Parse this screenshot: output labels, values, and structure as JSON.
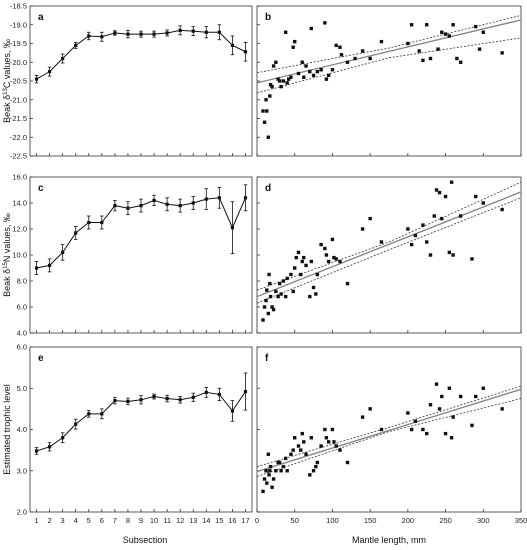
{
  "figure": {
    "left_xlabel": "Subsection",
    "right_xlabel": "Mantle length, mm"
  },
  "chart_data": [
    {
      "panel": "a",
      "type": "line",
      "ylabel": "Beak δ13C values, ‰",
      "ylabel_parts": {
        "pre": "Beak δ",
        "sup": "13",
        "post": "C values, ‰"
      },
      "xlabel": "Subsection",
      "xlim": [
        0.5,
        17.5
      ],
      "ylim": [
        -22.5,
        -18.5
      ],
      "xticks": [
        1,
        2,
        3,
        4,
        5,
        6,
        7,
        8,
        9,
        10,
        11,
        12,
        13,
        14,
        15,
        16,
        17
      ],
      "yticks": [
        -22.5,
        -22.0,
        -21.5,
        -21.0,
        -20.5,
        -20.0,
        -19.5,
        -19.0,
        -18.5
      ],
      "ytick_labels": [
        "-22.5",
        "-22.0",
        "-21.5",
        "-21.0",
        "-20.5",
        "-20.0",
        "-19.5",
        "-19.0",
        "-18.5"
      ],
      "x": [
        1,
        2,
        3,
        4,
        5,
        6,
        7,
        8,
        9,
        10,
        11,
        12,
        13,
        14,
        15,
        16,
        17
      ],
      "y": [
        -20.45,
        -20.25,
        -19.9,
        -19.55,
        -19.3,
        -19.32,
        -19.22,
        -19.25,
        -19.25,
        -19.25,
        -19.22,
        -19.15,
        -19.17,
        -19.2,
        -19.2,
        -19.55,
        -19.72
      ],
      "err": [
        0.1,
        0.12,
        0.12,
        0.08,
        0.1,
        0.12,
        0.06,
        0.1,
        0.08,
        0.08,
        0.08,
        0.12,
        0.12,
        0.15,
        0.2,
        0.25,
        0.25
      ]
    },
    {
      "panel": "b",
      "type": "scatter",
      "xlim": [
        0,
        350
      ],
      "ylim": [
        -22.5,
        -18.5
      ],
      "xticks": [
        0,
        50,
        100,
        150,
        200,
        250,
        300,
        350
      ],
      "yticks": [
        -22.5,
        -22.0,
        -21.5,
        -21.0,
        -20.5,
        -20.0,
        -19.5,
        -19.0,
        -18.5
      ],
      "fit": {
        "intercept": -20.55,
        "slope": 0.0048
      },
      "ci_upper": [
        [
          0,
          -20.28
        ],
        [
          175,
          -19.62
        ],
        [
          350,
          -18.75
        ]
      ],
      "ci_lower": [
        [
          0,
          -20.82
        ],
        [
          175,
          -19.88
        ],
        [
          350,
          -19.35
        ]
      ],
      "points": [
        [
          8,
          -21.3
        ],
        [
          10,
          -21.6
        ],
        [
          12,
          -21.0
        ],
        [
          13,
          -21.3
        ],
        [
          15,
          -22.0
        ],
        [
          17,
          -20.9
        ],
        [
          18,
          -20.6
        ],
        [
          20,
          -20.65
        ],
        [
          22,
          -20.1
        ],
        [
          25,
          -20.0
        ],
        [
          28,
          -20.45
        ],
        [
          30,
          -20.5
        ],
        [
          32,
          -20.65
        ],
        [
          35,
          -20.5
        ],
        [
          38,
          -19.2
        ],
        [
          40,
          -20.55
        ],
        [
          42,
          -20.45
        ],
        [
          45,
          -20.4
        ],
        [
          48,
          -19.6
        ],
        [
          50,
          -19.45
        ],
        [
          55,
          -20.3
        ],
        [
          60,
          -20.0
        ],
        [
          62,
          -20.4
        ],
        [
          65,
          -20.1
        ],
        [
          70,
          -20.25
        ],
        [
          72,
          -19.1
        ],
        [
          75,
          -20.35
        ],
        [
          80,
          -20.25
        ],
        [
          85,
          -20.2
        ],
        [
          90,
          -18.95
        ],
        [
          92,
          -20.45
        ],
        [
          95,
          -20.35
        ],
        [
          100,
          -20.2
        ],
        [
          105,
          -19.55
        ],
        [
          110,
          -19.6
        ],
        [
          112,
          -19.8
        ],
        [
          120,
          -20.0
        ],
        [
          130,
          -19.9
        ],
        [
          140,
          -19.7
        ],
        [
          150,
          -19.9
        ],
        [
          165,
          -19.45
        ],
        [
          200,
          -19.5
        ],
        [
          205,
          -19.0
        ],
        [
          215,
          -19.7
        ],
        [
          220,
          -19.95
        ],
        [
          225,
          -19.0
        ],
        [
          230,
          -19.9
        ],
        [
          240,
          -19.65
        ],
        [
          245,
          -19.2
        ],
        [
          250,
          -19.25
        ],
        [
          255,
          -19.3
        ],
        [
          260,
          -19.0
        ],
        [
          265,
          -19.9
        ],
        [
          270,
          -20.0
        ],
        [
          290,
          -19.05
        ],
        [
          295,
          -19.65
        ],
        [
          300,
          -19.2
        ],
        [
          325,
          -19.75
        ]
      ]
    },
    {
      "panel": "c",
      "type": "line",
      "ylabel": "Beak δ15N values, ‰",
      "ylabel_parts": {
        "pre": "Beak δ",
        "sup": "15",
        "post": "N values, ‰"
      },
      "xlim": [
        0.5,
        17.5
      ],
      "ylim": [
        4.0,
        16.0
      ],
      "xticks": [
        1,
        2,
        3,
        4,
        5,
        6,
        7,
        8,
        9,
        10,
        11,
        12,
        13,
        14,
        15,
        16,
        17
      ],
      "yticks": [
        4,
        6,
        8,
        10,
        12,
        14,
        16
      ],
      "ytick_labels": [
        "4.0",
        "6.0",
        "8.0",
        "10.0",
        "12.0",
        "14.0",
        "16.0"
      ],
      "x": [
        1,
        2,
        3,
        4,
        5,
        6,
        7,
        8,
        9,
        10,
        11,
        12,
        13,
        14,
        15,
        16,
        17
      ],
      "y": [
        9.0,
        9.2,
        10.2,
        11.7,
        12.5,
        12.5,
        13.8,
        13.6,
        13.8,
        14.2,
        13.9,
        13.8,
        14.0,
        14.3,
        14.4,
        12.1,
        14.4
      ],
      "err": [
        0.5,
        0.5,
        0.6,
        0.5,
        0.5,
        0.5,
        0.4,
        0.5,
        0.5,
        0.4,
        0.5,
        0.5,
        0.5,
        0.8,
        0.8,
        2.0,
        1.0
      ]
    },
    {
      "panel": "d",
      "type": "scatter",
      "xlim": [
        0,
        350
      ],
      "ylim": [
        4.0,
        16.0
      ],
      "xticks": [
        0,
        50,
        100,
        150,
        200,
        250,
        300,
        350
      ],
      "yticks": [
        4,
        6,
        8,
        10,
        12,
        14,
        16
      ],
      "fit": {
        "intercept": 6.8,
        "slope": 0.023
      },
      "ci_upper": [
        [
          0,
          7.3
        ],
        [
          175,
          11.0
        ],
        [
          350,
          15.6
        ]
      ],
      "ci_lower": [
        [
          0,
          6.3
        ],
        [
          175,
          10.4
        ],
        [
          350,
          14.4
        ]
      ],
      "points": [
        [
          8,
          5.0
        ],
        [
          10,
          6.0
        ],
        [
          12,
          6.5
        ],
        [
          13,
          7.3
        ],
        [
          15,
          5.5
        ],
        [
          16,
          8.5
        ],
        [
          17,
          7.8
        ],
        [
          18,
          6.8
        ],
        [
          20,
          6.0
        ],
        [
          22,
          5.8
        ],
        [
          25,
          7.2
        ],
        [
          28,
          6.8
        ],
        [
          30,
          7.8
        ],
        [
          32,
          7.0
        ],
        [
          35,
          8.0
        ],
        [
          38,
          6.8
        ],
        [
          40,
          8.2
        ],
        [
          45,
          8.5
        ],
        [
          48,
          7.2
        ],
        [
          50,
          9.0
        ],
        [
          52,
          9.8
        ],
        [
          55,
          10.2
        ],
        [
          58,
          8.5
        ],
        [
          60,
          9.5
        ],
        [
          62,
          9.8
        ],
        [
          65,
          9.2
        ],
        [
          70,
          6.8
        ],
        [
          72,
          9.5
        ],
        [
          75,
          7.5
        ],
        [
          78,
          7.0
        ],
        [
          80,
          8.5
        ],
        [
          85,
          10.8
        ],
        [
          90,
          10.5
        ],
        [
          92,
          10.0
        ],
        [
          95,
          9.5
        ],
        [
          100,
          11.2
        ],
        [
          102,
          9.8
        ],
        [
          105,
          9.7
        ],
        [
          110,
          9.5
        ],
        [
          120,
          7.8
        ],
        [
          140,
          12.0
        ],
        [
          150,
          12.8
        ],
        [
          165,
          11.0
        ],
        [
          200,
          12.0
        ],
        [
          205,
          10.8
        ],
        [
          210,
          11.5
        ],
        [
          220,
          12.3
        ],
        [
          225,
          11.0
        ],
        [
          230,
          10.0
        ],
        [
          235,
          13.0
        ],
        [
          238,
          15.0
        ],
        [
          242,
          14.8
        ],
        [
          245,
          12.8
        ],
        [
          250,
          14.5
        ],
        [
          255,
          10.2
        ],
        [
          258,
          15.6
        ],
        [
          260,
          10.0
        ],
        [
          270,
          13.0
        ],
        [
          285,
          9.7
        ],
        [
          290,
          14.5
        ],
        [
          300,
          14.0
        ],
        [
          325,
          13.5
        ]
      ]
    },
    {
      "panel": "e",
      "type": "line",
      "ylabel": "Estimated trophic level",
      "xlabel": "Subsection",
      "xlim": [
        0.5,
        17.5
      ],
      "ylim": [
        2.0,
        6.0
      ],
      "xticks": [
        1,
        2,
        3,
        4,
        5,
        6,
        7,
        8,
        9,
        10,
        11,
        12,
        13,
        14,
        15,
        16,
        17
      ],
      "yticks": [
        2,
        3,
        4,
        5,
        6
      ],
      "ytick_labels": [
        "2.0",
        "3.0",
        "4.0",
        "5.0",
        "6.0"
      ],
      "x": [
        1,
        2,
        3,
        4,
        5,
        6,
        7,
        8,
        9,
        10,
        11,
        12,
        13,
        14,
        15,
        16,
        17
      ],
      "y": [
        3.48,
        3.58,
        3.8,
        4.13,
        4.38,
        4.38,
        4.7,
        4.68,
        4.72,
        4.8,
        4.75,
        4.72,
        4.78,
        4.9,
        4.85,
        4.45,
        4.92
      ],
      "err": [
        0.08,
        0.1,
        0.12,
        0.12,
        0.08,
        0.12,
        0.08,
        0.08,
        0.1,
        0.06,
        0.08,
        0.08,
        0.1,
        0.12,
        0.15,
        0.25,
        0.45
      ]
    },
    {
      "panel": "f",
      "type": "scatter",
      "xlabel": "Mantle length, mm",
      "xlim": [
        0,
        350
      ],
      "ylim": [
        2.0,
        6.0
      ],
      "xticks": [
        0,
        50,
        100,
        150,
        200,
        250,
        300,
        350
      ],
      "yticks": [
        2,
        3,
        4,
        5,
        6
      ],
      "fit": {
        "intercept": 2.98,
        "slope": 0.0057
      },
      "ci_upper": [
        [
          0,
          3.1
        ],
        [
          175,
          4.05
        ],
        [
          350,
          5.05
        ]
      ],
      "ci_lower": [
        [
          0,
          2.86
        ],
        [
          175,
          3.95
        ],
        [
          350,
          4.75
        ]
      ],
      "points": [
        [
          8,
          2.5
        ],
        [
          10,
          2.8
        ],
        [
          12,
          3.0
        ],
        [
          13,
          2.7
        ],
        [
          15,
          3.4
        ],
        [
          16,
          2.9
        ],
        [
          17,
          3.0
        ],
        [
          18,
          3.1
        ],
        [
          20,
          2.6
        ],
        [
          22,
          2.8
        ],
        [
          25,
          3.0
        ],
        [
          28,
          3.2
        ],
        [
          30,
          3.2
        ],
        [
          32,
          3.0
        ],
        [
          35,
          3.1
        ],
        [
          38,
          3.3
        ],
        [
          40,
          3.0
        ],
        [
          45,
          3.4
        ],
        [
          48,
          3.5
        ],
        [
          50,
          3.8
        ],
        [
          55,
          3.6
        ],
        [
          58,
          3.5
        ],
        [
          60,
          3.9
        ],
        [
          62,
          3.7
        ],
        [
          65,
          3.4
        ],
        [
          70,
          2.9
        ],
        [
          72,
          3.8
        ],
        [
          75,
          3.0
        ],
        [
          78,
          3.1
        ],
        [
          80,
          3.2
        ],
        [
          85,
          3.6
        ],
        [
          90,
          4.0
        ],
        [
          92,
          3.8
        ],
        [
          95,
          3.7
        ],
        [
          100,
          4.0
        ],
        [
          102,
          3.7
        ],
        [
          105,
          3.6
        ],
        [
          110,
          3.5
        ],
        [
          120,
          3.2
        ],
        [
          140,
          4.3
        ],
        [
          150,
          4.5
        ],
        [
          165,
          4.0
        ],
        [
          200,
          4.4
        ],
        [
          205,
          4.0
        ],
        [
          210,
          4.2
        ],
        [
          220,
          4.0
        ],
        [
          225,
          3.9
        ],
        [
          230,
          4.6
        ],
        [
          238,
          5.1
        ],
        [
          242,
          4.5
        ],
        [
          245,
          4.8
        ],
        [
          250,
          3.9
        ],
        [
          255,
          5.0
        ],
        [
          258,
          3.8
        ],
        [
          260,
          4.3
        ],
        [
          270,
          4.8
        ],
        [
          285,
          4.1
        ],
        [
          290,
          4.8
        ],
        [
          300,
          5.0
        ],
        [
          325,
          4.5
        ]
      ]
    }
  ]
}
